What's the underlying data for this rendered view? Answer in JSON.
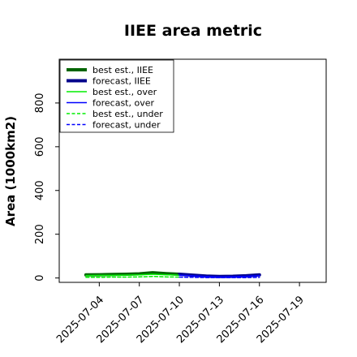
{
  "chart_data": {
    "type": "line",
    "title": "IIEE area metric",
    "ylabel": "Area (1000km2)",
    "xlabel": "",
    "ylim": [
      -20,
      1000
    ],
    "yticks": [
      0,
      200,
      400,
      600,
      800
    ],
    "x_range": [
      "2025-07-01",
      "2025-07-21"
    ],
    "x_tick_labels": [
      "2025-07-04",
      "2025-07-07",
      "2025-07-10",
      "2025-07-13",
      "2025-07-16",
      "2025-07-19"
    ],
    "highlighted_tick": "2025-07-10",
    "highlight_color": "#228b22",
    "grid": false,
    "legend_position": "top-left",
    "series": [
      {
        "name": "best est., IIEE",
        "color": "#006400",
        "style": "solid",
        "width": 4,
        "x": [
          "2025-07-03",
          "2025-07-04",
          "2025-07-05",
          "2025-07-06",
          "2025-07-07",
          "2025-07-08",
          "2025-07-09",
          "2025-07-10"
        ],
        "values": [
          14,
          15,
          16,
          17,
          19,
          24,
          20,
          17
        ]
      },
      {
        "name": "forecast, IIEE",
        "color": "#00008b",
        "style": "solid",
        "width": 4,
        "x": [
          "2025-07-10",
          "2025-07-11",
          "2025-07-12",
          "2025-07-13",
          "2025-07-14",
          "2025-07-15",
          "2025-07-16"
        ],
        "values": [
          17,
          13,
          9,
          7,
          8,
          10,
          14
        ]
      },
      {
        "name": "best est., over",
        "color": "#00ee00",
        "style": "solid",
        "width": 1.5,
        "x": [
          "2025-07-03",
          "2025-07-04",
          "2025-07-05",
          "2025-07-06",
          "2025-07-07",
          "2025-07-08",
          "2025-07-09",
          "2025-07-10"
        ],
        "values": [
          11,
          12,
          12,
          13,
          14,
          17,
          15,
          13
        ]
      },
      {
        "name": "forecast, over",
        "color": "#0000ff",
        "style": "solid",
        "width": 1.5,
        "x": [
          "2025-07-10",
          "2025-07-11",
          "2025-07-12",
          "2025-07-13",
          "2025-07-14",
          "2025-07-15",
          "2025-07-16"
        ],
        "values": [
          13,
          10,
          7,
          5,
          6,
          8,
          11
        ]
      },
      {
        "name": "best est., under",
        "color": "#00ee00",
        "style": "dashed",
        "width": 1.5,
        "x": [
          "2025-07-03",
          "2025-07-04",
          "2025-07-05",
          "2025-07-06",
          "2025-07-07",
          "2025-07-08",
          "2025-07-09",
          "2025-07-10"
        ],
        "values": [
          3,
          3,
          4,
          4,
          5,
          7,
          5,
          4
        ]
      },
      {
        "name": "forecast, under",
        "color": "#0000ff",
        "style": "dashed",
        "width": 1.5,
        "x": [
          "2025-07-10",
          "2025-07-11",
          "2025-07-12",
          "2025-07-13",
          "2025-07-14",
          "2025-07-15",
          "2025-07-16"
        ],
        "values": [
          4,
          3,
          2,
          2,
          2,
          2,
          3
        ]
      }
    ]
  }
}
